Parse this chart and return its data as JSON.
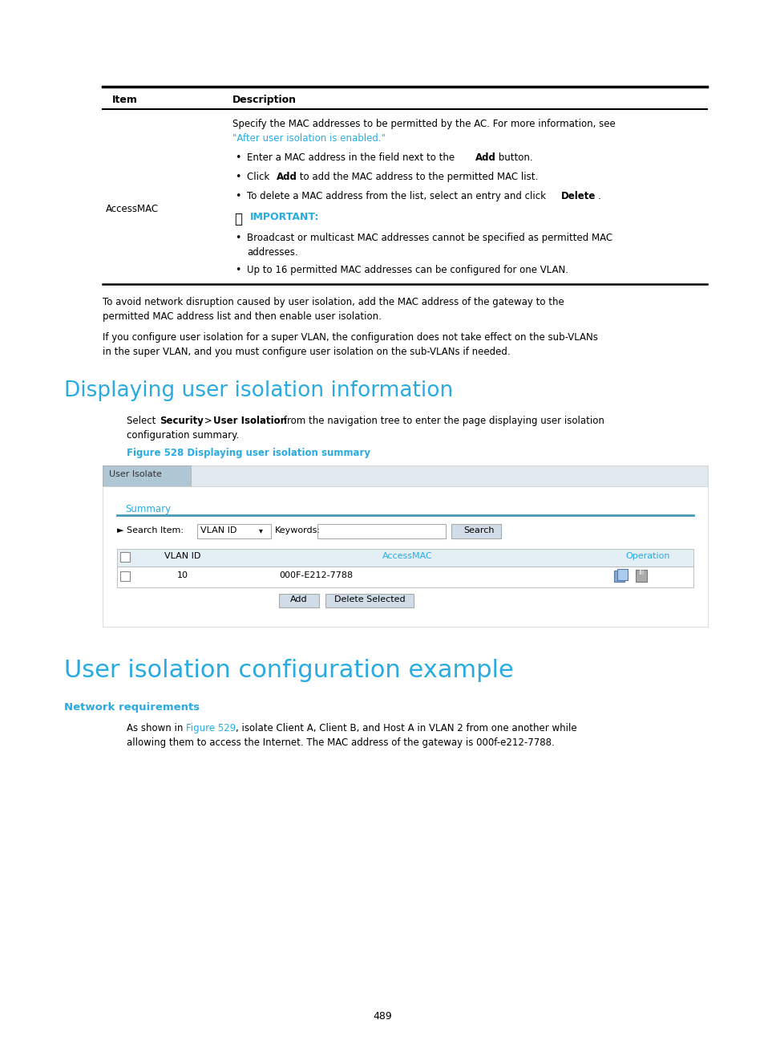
{
  "bg_color": "#ffffff",
  "page_width": 9.54,
  "page_height": 12.96,
  "dpi": 100,
  "cyan_color": "#29abe2",
  "black": "#000000",
  "table_header_item": "Item",
  "table_header_desc": "Description",
  "desc_line1": "Specify the MAC addresses to be permitted by the AC. For more information, see",
  "desc_link": "\"After user isolation is enabled.\"",
  "important_label": "IMPORTANT:",
  "bullet5": "Up to 16 permitted MAC addresses can be configured for one VLAN.",
  "item_label": "AccessMAC",
  "para1_line1": "To avoid network disruption caused by user isolation, add the MAC address of the gateway to the",
  "para1_line2": "permitted MAC address list and then enable user isolation.",
  "para2_line1": "If you configure user isolation for a super VLAN, the configuration does not take effect on the sub-VLANs",
  "para2_line2": "in the super VLAN, and you must configure user isolation on the sub-VLANs if needed.",
  "section1_title": "Displaying user isolation information",
  "section1_para2": "configuration summary.",
  "fig_label": "Figure 528 Displaying user isolation summary",
  "ui_tab": "User Isolate",
  "ui_summary": "Summary",
  "ui_vlan_id_dd": "VLAN ID",
  "ui_keywords": "Keywords:",
  "ui_search_btn": "Search",
  "ui_col1": "VLAN ID",
  "ui_col2": "AccessMAC",
  "ui_col3": "Operation",
  "ui_row_vlan": "10",
  "ui_row_mac": "000F-E212-7788",
  "ui_add_btn": "Add",
  "ui_del_btn": "Delete Selected",
  "section2_title": "User isolation configuration example",
  "section2_sub": "Network requirements",
  "section2_para2": "allowing them to access the Internet. The MAC address of the gateway is 000f-e212-7788.",
  "page_num": "489"
}
